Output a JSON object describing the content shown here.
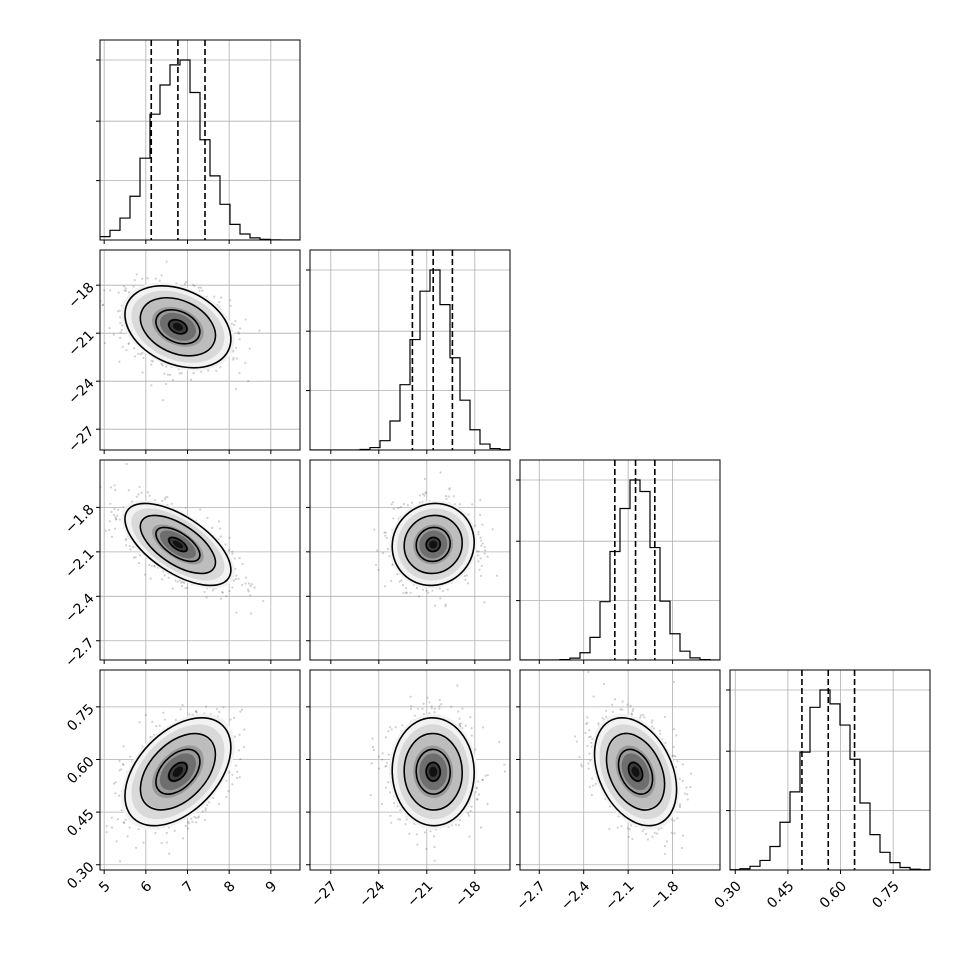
{
  "chart_data": {
    "type": "corner",
    "title": "",
    "grid": true,
    "parameters": [
      {
        "name": "",
        "range": [
          4.9,
          9.7
        ],
        "ticks": [
          5,
          6,
          7,
          8,
          9
        ],
        "tick_labels": [
          "5",
          "6",
          "7",
          "8",
          "9"
        ],
        "quantiles": [
          6.13,
          6.77,
          7.42
        ],
        "mean": 6.77,
        "sd": 0.62
      },
      {
        "name": "",
        "range": [
          -28.3,
          -15.8
        ],
        "ticks": [
          -27,
          -24,
          -21,
          -18
        ],
        "tick_labels": [
          "−27",
          "−24",
          "−21",
          "−18"
        ],
        "quantiles": [
          -21.9,
          -20.6,
          -19.4
        ],
        "mean": -20.6,
        "sd": 1.25
      },
      {
        "name": "",
        "range": [
          -2.83,
          -1.48
        ],
        "ticks": [
          -2.7,
          -2.4,
          -2.1,
          -1.8
        ],
        "tick_labels": [
          "−2.7",
          "−2.4",
          "−2.1",
          "−1.8"
        ],
        "quantiles": [
          -2.19,
          -2.05,
          -1.92
        ],
        "mean": -2.05,
        "sd": 0.135
      },
      {
        "name": "",
        "range": [
          0.285,
          0.855
        ],
        "ticks": [
          0.3,
          0.45,
          0.6,
          0.75
        ],
        "tick_labels": [
          "0.30",
          "0.45",
          "0.60",
          "0.75"
        ],
        "quantiles": [
          0.49,
          0.565,
          0.64
        ],
        "mean": 0.565,
        "sd": 0.075
      }
    ],
    "correlations": [
      {
        "pair": [
          1,
          0
        ],
        "r": -0.3
      },
      {
        "pair": [
          2,
          0
        ],
        "r": -0.62
      },
      {
        "pair": [
          2,
          1
        ],
        "r": 0.05
      },
      {
        "pair": [
          3,
          0
        ],
        "r": 0.45
      },
      {
        "pair": [
          3,
          1
        ],
        "r": -0.02
      },
      {
        "pair": [
          3,
          2
        ],
        "r": -0.33
      }
    ],
    "contour_levels_sigma": [
      0.5,
      1.0,
      1.5,
      2.0
    ],
    "samples_shown_as": "scatter points with 2D histogram shading and contours"
  }
}
